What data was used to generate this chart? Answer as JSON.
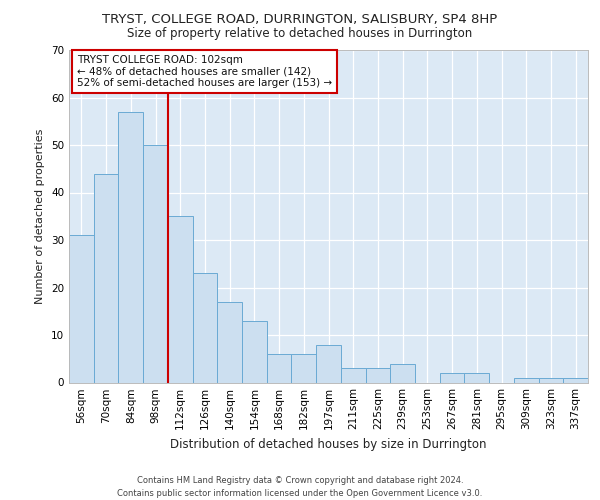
{
  "title": "TRYST, COLLEGE ROAD, DURRINGTON, SALISBURY, SP4 8HP",
  "subtitle": "Size of property relative to detached houses in Durrington",
  "xlabel": "Distribution of detached houses by size in Durrington",
  "ylabel": "Number of detached properties",
  "categories": [
    "56sqm",
    "70sqm",
    "84sqm",
    "98sqm",
    "112sqm",
    "126sqm",
    "140sqm",
    "154sqm",
    "168sqm",
    "182sqm",
    "197sqm",
    "211sqm",
    "225sqm",
    "239sqm",
    "253sqm",
    "267sqm",
    "281sqm",
    "295sqm",
    "309sqm",
    "323sqm",
    "337sqm"
  ],
  "values": [
    31,
    44,
    57,
    50,
    35,
    23,
    17,
    13,
    6,
    6,
    8,
    3,
    3,
    4,
    0,
    2,
    2,
    0,
    1,
    1,
    1
  ],
  "bar_color": "#ccdff0",
  "bar_edge_color": "#6aaad4",
  "background_color": "#dce9f5",
  "vline_x_index": 3.5,
  "vline_color": "#cc0000",
  "annotation_text": "TRYST COLLEGE ROAD: 102sqm\n← 48% of detached houses are smaller (142)\n52% of semi-detached houses are larger (153) →",
  "annotation_box_color": "#ffffff",
  "annotation_box_edge": "#cc0000",
  "footer": "Contains HM Land Registry data © Crown copyright and database right 2024.\nContains public sector information licensed under the Open Government Licence v3.0.",
  "ylim": [
    0,
    70
  ],
  "yticks": [
    0,
    10,
    20,
    30,
    40,
    50,
    60,
    70
  ],
  "title_fontsize": 9.5,
  "subtitle_fontsize": 8.5,
  "ylabel_fontsize": 8,
  "xlabel_fontsize": 8.5,
  "tick_fontsize": 7.5,
  "footer_fontsize": 6.0,
  "annotation_fontsize": 7.5
}
